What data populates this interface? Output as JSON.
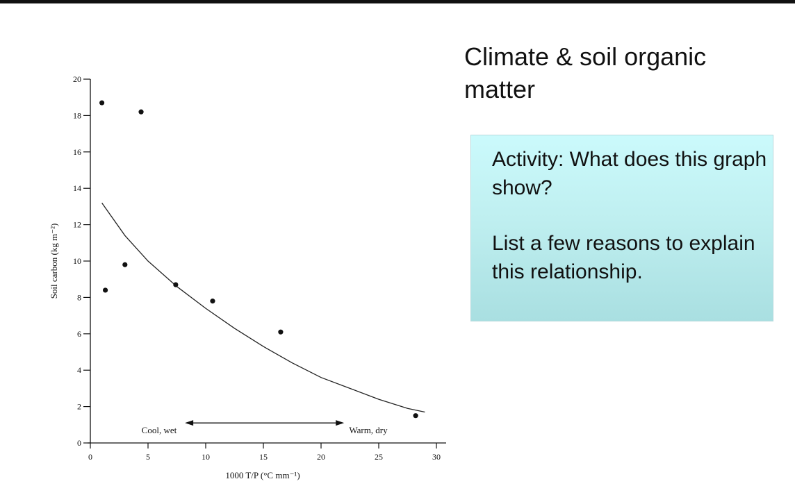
{
  "slide": {
    "title": "Climate & soil organic matter",
    "activity_question": "Activity: What does this graph show?",
    "activity_prompt": "List a few reasons to explain this relationship.",
    "box_color": "#c3f1f3"
  },
  "chart_data": {
    "type": "scatter",
    "title": "",
    "xlabel": "1000 T/P (°C mm⁻¹)",
    "ylabel": "Soil carbon (kg m⁻²)",
    "xlim": [
      0,
      30
    ],
    "ylim": [
      0,
      20
    ],
    "x_ticks": [
      0,
      5,
      10,
      15,
      20,
      25,
      30
    ],
    "y_ticks": [
      0,
      2,
      4,
      6,
      8,
      10,
      12,
      14,
      16,
      18,
      20
    ],
    "grid": false,
    "points": [
      {
        "x": 1.0,
        "y": 18.7
      },
      {
        "x": 4.4,
        "y": 18.2
      },
      {
        "x": 1.3,
        "y": 8.4
      },
      {
        "x": 3.0,
        "y": 9.8
      },
      {
        "x": 7.4,
        "y": 8.7
      },
      {
        "x": 10.6,
        "y": 7.8
      },
      {
        "x": 16.5,
        "y": 6.1
      },
      {
        "x": 28.2,
        "y": 1.5
      }
    ],
    "trend_curve": [
      {
        "x": 1.0,
        "y": 13.2
      },
      {
        "x": 3.0,
        "y": 11.4
      },
      {
        "x": 5.0,
        "y": 10.0
      },
      {
        "x": 7.5,
        "y": 8.6
      },
      {
        "x": 10.0,
        "y": 7.4
      },
      {
        "x": 12.5,
        "y": 6.3
      },
      {
        "x": 15.0,
        "y": 5.3
      },
      {
        "x": 17.5,
        "y": 4.4
      },
      {
        "x": 20.0,
        "y": 3.6
      },
      {
        "x": 22.5,
        "y": 3.0
      },
      {
        "x": 25.0,
        "y": 2.4
      },
      {
        "x": 27.5,
        "y": 1.9
      },
      {
        "x": 29.0,
        "y": 1.7
      }
    ],
    "annotations": {
      "left_label": "Cool, wet",
      "right_label": "Warm, dry",
      "arrow_from": 8.2,
      "arrow_to": 22.0,
      "arrow_y": 1.1
    }
  }
}
